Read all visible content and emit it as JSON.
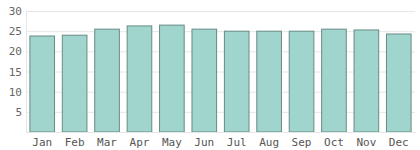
{
  "chart_data": {
    "type": "bar",
    "categories": [
      "Jan",
      "Feb",
      "Mar",
      "Apr",
      "May",
      "Jun",
      "Jul",
      "Aug",
      "Sep",
      "Oct",
      "Nov",
      "Dec"
    ],
    "values": [
      23.8,
      24,
      25.5,
      26.3,
      26.5,
      25.5,
      25,
      25,
      25,
      25.5,
      25.3,
      24.3
    ],
    "color": "#9fd5cd",
    "ylim": [
      0,
      30
    ],
    "yticks": [
      5,
      10,
      15,
      20,
      25,
      30
    ],
    "grid": true
  }
}
